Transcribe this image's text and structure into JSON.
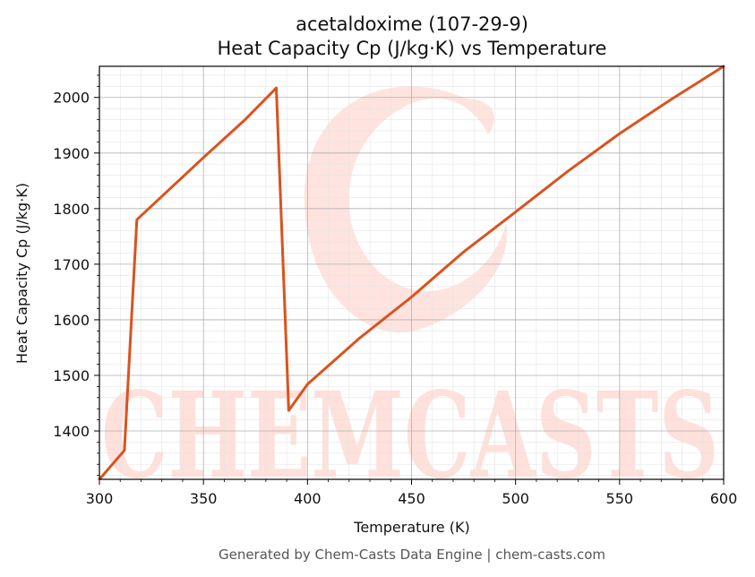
{
  "chart_data": {
    "type": "line",
    "title": "acetaldoxime (107-29-9)",
    "subtitle": "Heat Capacity Cp (J/kg·K) vs Temperature",
    "xlabel": "Temperature (K)",
    "ylabel": "Heat Capacity Cp (J/kg·K)",
    "xlim": [
      300,
      600
    ],
    "ylim": [
      1313,
      2056
    ],
    "xticks": [
      300,
      350,
      400,
      450,
      500,
      550,
      600
    ],
    "yticks": [
      1400,
      1500,
      1600,
      1700,
      1800,
      1900,
      2000
    ],
    "grid": true,
    "series": [
      {
        "color": "#d9531e",
        "x": [
          300,
          312,
          318,
          330,
          350,
          370,
          385,
          391,
          400,
          425,
          450,
          475,
          500,
          525,
          550,
          575,
          600
        ],
        "y": [
          1313,
          1365,
          1780,
          1822,
          1892,
          1960,
          2017,
          1437,
          1484,
          1567,
          1641,
          1722,
          1794,
          1867,
          1935,
          1997,
          2056
        ]
      }
    ]
  },
  "watermark": "CHEMCASTS",
  "footer": "Generated by Chem-Casts Data Engine | chem-casts.com",
  "colors": {
    "line": "#d9531e",
    "watermark": "#ffe0da",
    "grid": "#b0b0b0"
  }
}
